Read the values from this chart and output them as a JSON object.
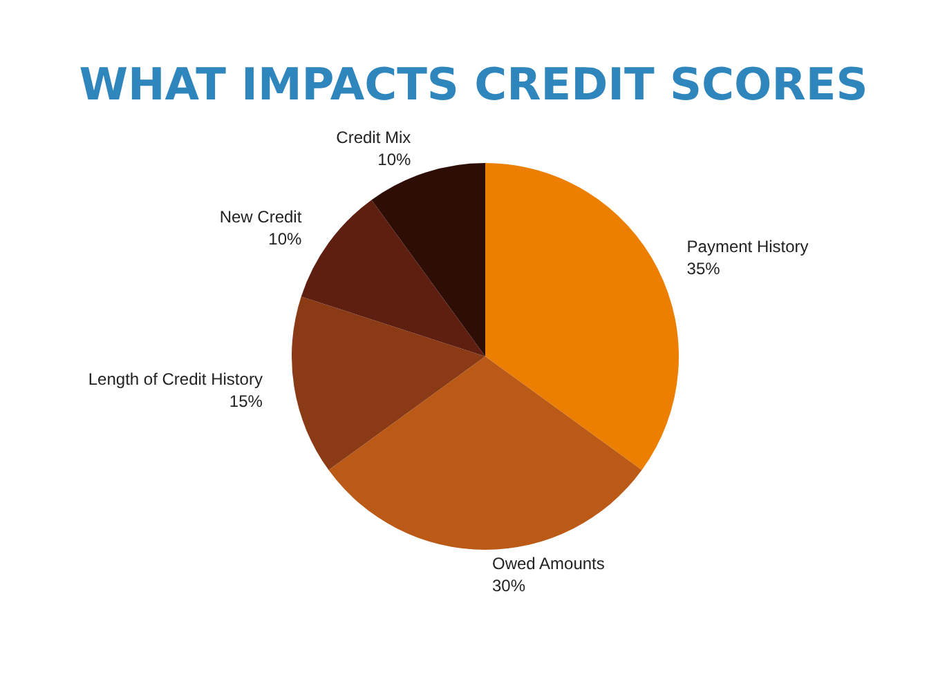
{
  "chart_data": {
    "type": "pie",
    "title": "WHAT IMPACTS CREDIT SCORES",
    "categories": [
      "Payment History",
      "Owed Amounts",
      "Length of Credit History",
      "New Credit",
      "Credit Mix"
    ],
    "values": [
      35,
      30,
      15,
      10,
      10
    ],
    "value_labels": [
      "35%",
      "30%",
      "15%",
      "10%",
      "10%"
    ],
    "colors": [
      "#ec7f00",
      "#bb5a17",
      "#8b3a16",
      "#5e1f10",
      "#2e0d05"
    ],
    "legend": false
  }
}
